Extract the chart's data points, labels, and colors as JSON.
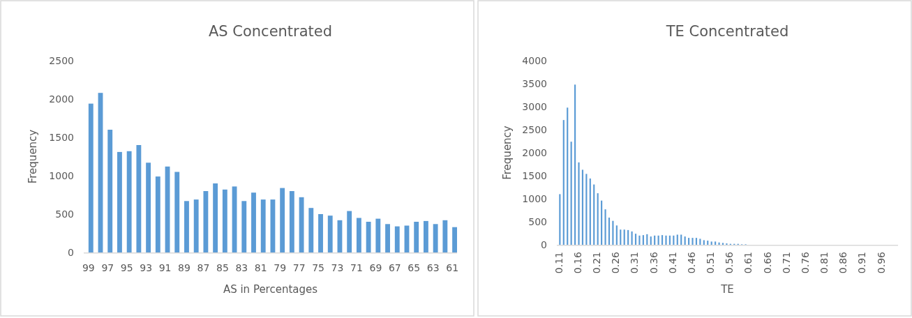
{
  "chart_data": [
    {
      "type": "bar",
      "title": "AS Concentrated",
      "xlabel": "AS in Percentages",
      "ylabel": "Frequency",
      "color": "#5b9bd5",
      "ylim": [
        0,
        2500
      ],
      "yticks": [
        0,
        500,
        1000,
        1500,
        2000,
        2500
      ],
      "categories": [
        "99",
        null,
        "97",
        null,
        "95",
        null,
        "93",
        null,
        "91",
        null,
        "89",
        null,
        "87",
        null,
        "85",
        null,
        "83",
        null,
        "81",
        null,
        "79",
        null,
        "77",
        null,
        "75",
        null,
        "73",
        null,
        "71",
        null,
        "69",
        null,
        "67",
        null,
        "65",
        null,
        "63",
        null,
        "61"
      ],
      "values": [
        1940,
        2080,
        1600,
        1310,
        1320,
        1400,
        1170,
        990,
        1120,
        1050,
        670,
        690,
        800,
        900,
        820,
        860,
        670,
        780,
        690,
        690,
        840,
        800,
        720,
        580,
        500,
        480,
        420,
        540,
        450,
        400,
        440,
        370,
        340,
        350,
        400,
        410,
        370,
        420,
        330
      ]
    },
    {
      "type": "bar",
      "title": "TE Concentrated",
      "xlabel": "TE",
      "ylabel": "Frequency",
      "color": "#5b9bd5",
      "ylim": [
        0,
        4000
      ],
      "yticks": [
        0,
        500,
        1000,
        1500,
        2000,
        2500,
        3000,
        3500,
        4000
      ],
      "categories": [
        "0.11",
        null,
        null,
        null,
        null,
        "0.16",
        null,
        null,
        null,
        null,
        "0.21",
        null,
        null,
        null,
        null,
        "0.26",
        null,
        null,
        null,
        null,
        "0.31",
        null,
        null,
        null,
        null,
        "0.36",
        null,
        null,
        null,
        null,
        "0.41",
        null,
        null,
        null,
        null,
        "0.46",
        null,
        null,
        null,
        null,
        "0.51",
        null,
        null,
        null,
        null,
        "0.56",
        null,
        null,
        null,
        null,
        "0.61",
        null,
        null,
        null,
        null,
        "0.66",
        null,
        null,
        null,
        null,
        "0.71",
        null,
        null,
        null,
        null,
        "0.76",
        null,
        null,
        null,
        null,
        "0.81",
        null,
        null,
        null,
        null,
        "0.86",
        null,
        null,
        null,
        null,
        "0.91",
        null,
        null,
        null,
        null,
        "0.96",
        null,
        null,
        null,
        null
      ],
      "values": [
        1100,
        2710,
        2980,
        2240,
        3480,
        1790,
        1630,
        1540,
        1440,
        1310,
        1120,
        960,
        770,
        590,
        520,
        420,
        330,
        330,
        320,
        290,
        240,
        200,
        210,
        230,
        180,
        200,
        200,
        210,
        200,
        200,
        200,
        220,
        220,
        180,
        150,
        150,
        150,
        130,
        100,
        90,
        70,
        70,
        50,
        40,
        30,
        20,
        20,
        20,
        10,
        10,
        0,
        0,
        0,
        0,
        0,
        0,
        0,
        0,
        0,
        0,
        0,
        0,
        0,
        0,
        0,
        0,
        0,
        0,
        0,
        0,
        0,
        0,
        0,
        0,
        0,
        0,
        0,
        0,
        0,
        0,
        0,
        0,
        0,
        0,
        0,
        0,
        0,
        0,
        0,
        0
      ]
    }
  ]
}
